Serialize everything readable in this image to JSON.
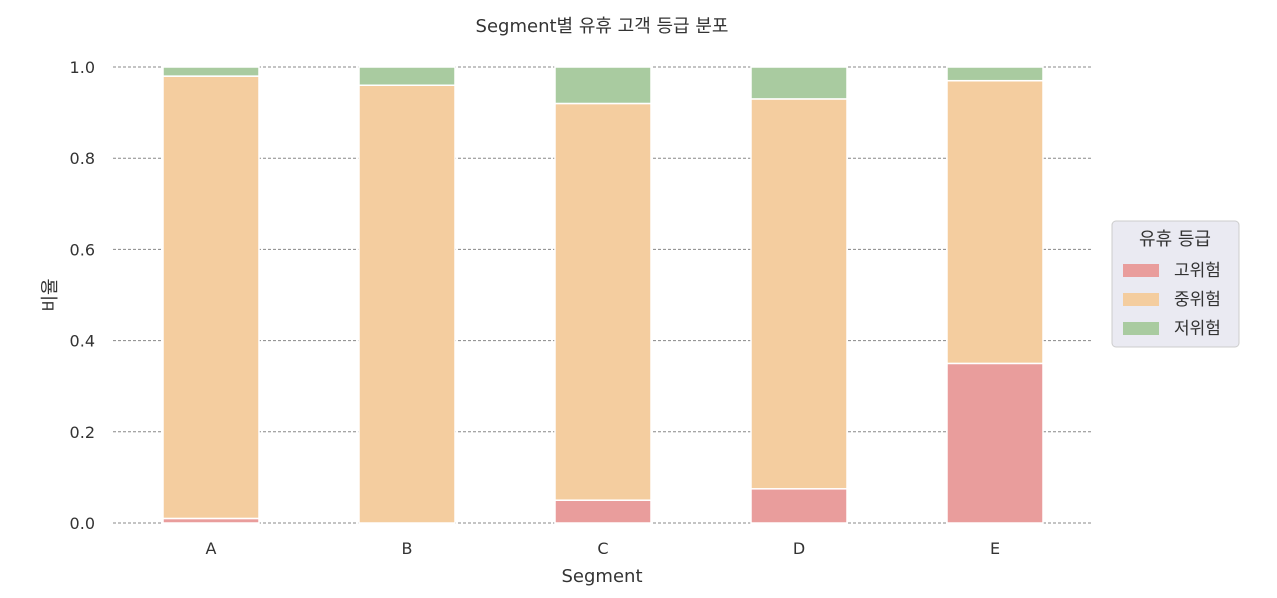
{
  "chart_data": {
    "type": "bar",
    "stacked": true,
    "title": "Segment별 유휴 고객 등급 분포",
    "xlabel": "Segment",
    "ylabel": "비율",
    "categories": [
      "A",
      "B",
      "C",
      "D",
      "E"
    ],
    "ylim": [
      0,
      1.0
    ],
    "yticks": [
      "0.0",
      "0.2",
      "0.4",
      "0.6",
      "0.8",
      "1.0"
    ],
    "grid": "horizontal-dashed",
    "legend": {
      "title": "유휴 등급",
      "placement": "right"
    },
    "series": [
      {
        "name": "고위험",
        "color": "#e99d9c",
        "values": [
          0.01,
          0.0,
          0.05,
          0.075,
          0.35
        ]
      },
      {
        "name": "중위험",
        "color": "#f4cd9f",
        "values": [
          0.97,
          0.96,
          0.87,
          0.855,
          0.62
        ]
      },
      {
        "name": "저위험",
        "color": "#a9cba0",
        "values": [
          0.02,
          0.04,
          0.08,
          0.07,
          0.03
        ]
      }
    ]
  }
}
